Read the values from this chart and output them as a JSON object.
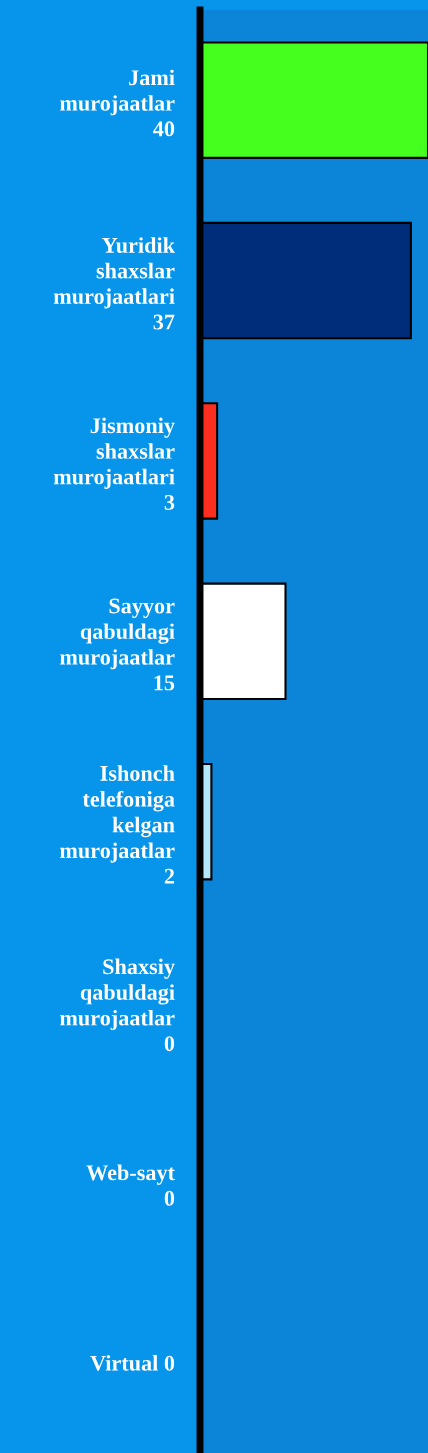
{
  "chart_data": {
    "type": "bar",
    "orientation": "horizontal",
    "categories": [
      "Jami murojaatlar",
      "Yuridik shaxslar murojaatlari",
      "Jismoniy shaxslar murojaatlari",
      "Sayyor qabuldagi murojaatlar",
      "Ishonch telefoniga kelgan murojaatlar",
      "Shaxsiy qabuldagi murojaatlar",
      "Web-sayt",
      "Virtual"
    ],
    "values": [
      40,
      37,
      3,
      15,
      2,
      0,
      0,
      0
    ],
    "value_labels": [
      "40",
      "37",
      "3",
      "15",
      "2",
      "0",
      "0",
      "0"
    ],
    "colors": [
      "#45ff1f",
      "#002d7a",
      "#fb2e1f",
      "#ffffff",
      "#b3e8fb",
      "#ffffff",
      "#ffffff",
      "#ffffff"
    ],
    "grid": false,
    "legend": false
  }
}
